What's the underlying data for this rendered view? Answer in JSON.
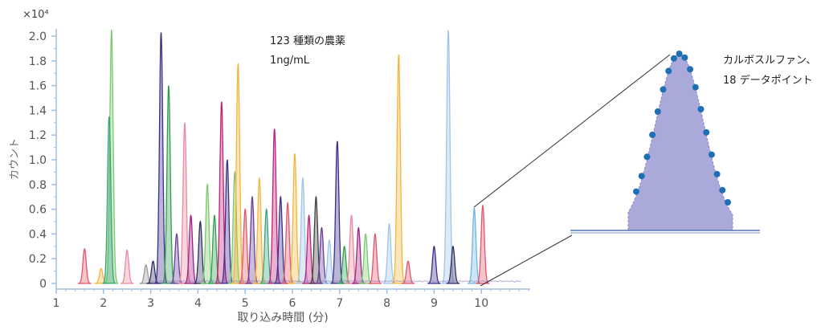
{
  "chart_data": {
    "type": "line",
    "exponent_label": "×10⁴",
    "ylabel": "カウント",
    "xlabel": "取り込み時間 (分)",
    "xlim": [
      1,
      11
    ],
    "ylim": [
      0,
      2.05
    ],
    "y_scale_multiplier": 10000,
    "xticks": [
      1,
      2,
      3,
      4,
      5,
      6,
      7,
      8,
      9,
      10
    ],
    "yticks": [
      0,
      0.2,
      0.4,
      0.6,
      0.8,
      1.0,
      1.2,
      1.4,
      1.6,
      1.8,
      2.0
    ],
    "ytick_labels": [
      "0",
      "0.2",
      "0.4",
      "0.6",
      "0.8",
      "1.0",
      "1.2",
      "1.4",
      "1.6",
      "1.8",
      "2.0"
    ],
    "annotation_lines": [
      "123 種類の農薬",
      "1ng/mL"
    ],
    "peaks": [
      {
        "rt": 1.6,
        "height": 0.28,
        "color": "#e0566b"
      },
      {
        "rt": 1.95,
        "height": 0.12,
        "color": "#f4b53a"
      },
      {
        "rt": 2.17,
        "height": 2.05,
        "color": "#7cc96e"
      },
      {
        "rt": 2.12,
        "height": 1.35,
        "color": "#3aa37a"
      },
      {
        "rt": 2.5,
        "height": 0.27,
        "color": "#e88aa0"
      },
      {
        "rt": 2.9,
        "height": 0.15,
        "color": "#9a9a9a"
      },
      {
        "rt": 3.05,
        "height": 0.18,
        "color": "#303060"
      },
      {
        "rt": 3.22,
        "height": 2.03,
        "color": "#3b2e8a"
      },
      {
        "rt": 3.38,
        "height": 1.6,
        "color": "#2e9e4f"
      },
      {
        "rt": 3.55,
        "height": 0.4,
        "color": "#6a3d9a"
      },
      {
        "rt": 3.72,
        "height": 1.3,
        "color": "#e88aa0"
      },
      {
        "rt": 3.85,
        "height": 0.55,
        "color": "#a02080"
      },
      {
        "rt": 4.05,
        "height": 0.5,
        "color": "#303060"
      },
      {
        "rt": 4.2,
        "height": 0.8,
        "color": "#7cc96e"
      },
      {
        "rt": 4.35,
        "height": 0.55,
        "color": "#2e9e4f"
      },
      {
        "rt": 4.5,
        "height": 1.47,
        "color": "#c0207a"
      },
      {
        "rt": 4.62,
        "height": 1.0,
        "color": "#3b2e8a"
      },
      {
        "rt": 4.78,
        "height": 0.9,
        "color": "#7cc96e"
      },
      {
        "rt": 4.85,
        "height": 1.78,
        "color": "#f4b53a"
      },
      {
        "rt": 5.0,
        "height": 0.6,
        "color": "#e0566b"
      },
      {
        "rt": 5.15,
        "height": 0.7,
        "color": "#6a3d9a"
      },
      {
        "rt": 5.3,
        "height": 0.85,
        "color": "#f4b53a"
      },
      {
        "rt": 5.45,
        "height": 0.6,
        "color": "#3aa37a"
      },
      {
        "rt": 5.62,
        "height": 1.25,
        "color": "#c0207a"
      },
      {
        "rt": 5.75,
        "height": 0.7,
        "color": "#3b2e8a"
      },
      {
        "rt": 5.9,
        "height": 0.65,
        "color": "#e0566b"
      },
      {
        "rt": 6.05,
        "height": 1.05,
        "color": "#f4b53a"
      },
      {
        "rt": 6.22,
        "height": 0.85,
        "color": "#9ec6e8"
      },
      {
        "rt": 6.35,
        "height": 0.55,
        "color": "#c0207a"
      },
      {
        "rt": 6.5,
        "height": 0.7,
        "color": "#404040"
      },
      {
        "rt": 6.62,
        "height": 0.45,
        "color": "#6a3d9a"
      },
      {
        "rt": 6.78,
        "height": 0.35,
        "color": "#9ec6e8"
      },
      {
        "rt": 6.95,
        "height": 1.15,
        "color": "#3b2e8a"
      },
      {
        "rt": 7.1,
        "height": 0.3,
        "color": "#2e9e4f"
      },
      {
        "rt": 7.25,
        "height": 0.55,
        "color": "#e88aa0"
      },
      {
        "rt": 7.4,
        "height": 0.45,
        "color": "#a02080"
      },
      {
        "rt": 7.55,
        "height": 0.4,
        "color": "#7cc96e"
      },
      {
        "rt": 7.75,
        "height": 0.4,
        "color": "#e0566b"
      },
      {
        "rt": 8.05,
        "height": 0.48,
        "color": "#9ec6e8"
      },
      {
        "rt": 8.25,
        "height": 1.85,
        "color": "#f4b53a"
      },
      {
        "rt": 8.45,
        "height": 0.18,
        "color": "#e0566b"
      },
      {
        "rt": 9.0,
        "height": 0.3,
        "color": "#3b2e8a"
      },
      {
        "rt": 9.3,
        "height": 2.05,
        "color": "#9ec6e8"
      },
      {
        "rt": 9.4,
        "height": 0.3,
        "color": "#303060"
      },
      {
        "rt": 9.85,
        "height": 0.61,
        "color": "#6fb6e0"
      },
      {
        "rt": 10.03,
        "height": 0.63,
        "color": "#e0566b"
      }
    ]
  },
  "inset": {
    "label_lines": [
      "カルボスルファン、",
      "18 データポイント"
    ],
    "data_points": 18,
    "fill_color": "#a9a9da",
    "point_color": "#1f6fb5"
  }
}
